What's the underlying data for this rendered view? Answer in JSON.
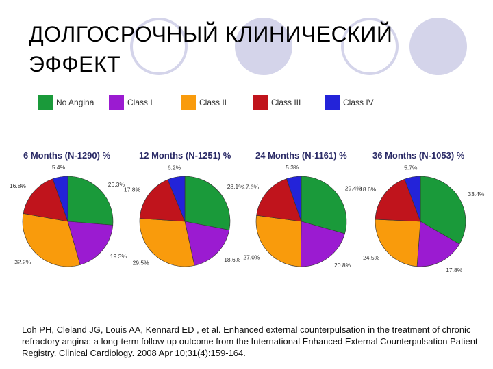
{
  "slide": {
    "title": "ДОЛГОСРОЧНЫЙ КЛИНИЧЕСКИЙ\nЭФФЕКТ",
    "citation": "Loh PH, Cleland JG, Louis AA, Kennard ED , et al. Enhanced external counterpulsation in the treatment of chronic refractory angina: a long-term follow-up outcome from the International Enhanced External Counterpulsation Patient Registry. Clinical Cardiology. 2008 Apr 10;31(4):159-164."
  },
  "legend": [
    {
      "label": "No Angina",
      "color": "#1a9a3a"
    },
    {
      "label": "Class I",
      "color": "#9b1bd1"
    },
    {
      "label": "Class II",
      "color": "#f99b0c"
    },
    {
      "label": "Class III",
      "color": "#c0141c"
    },
    {
      "label": "Class IV",
      "color": "#2323d9"
    }
  ],
  "chart_data": [
    {
      "type": "pie",
      "title": "6 Months (N-1290) %",
      "categories": [
        "No Angina",
        "Class I",
        "Class II",
        "Class III",
        "Class IV"
      ],
      "values": [
        26.3,
        19.3,
        32.2,
        16.8,
        5.4
      ],
      "labels": [
        "26.3%",
        "19.3%",
        "32.2%",
        "16.8%",
        "5.4%"
      ]
    },
    {
      "type": "pie",
      "title": "12 Months (N-1251) %",
      "categories": [
        "No Angina",
        "Class I",
        "Class II",
        "Class III",
        "Class IV"
      ],
      "values": [
        28.1,
        18.6,
        29.5,
        17.8,
        6.2
      ],
      "labels": [
        "28.1%",
        "18.6%",
        "29.5%",
        "17.8%",
        "6.2%"
      ]
    },
    {
      "type": "pie",
      "title": "24 Months (N-1161) %",
      "categories": [
        "No Angina",
        "Class I",
        "Class II",
        "Class III",
        "Class IV"
      ],
      "values": [
        29.4,
        20.8,
        27.0,
        17.6,
        5.3
      ],
      "labels": [
        "29.4%",
        "20.8%",
        "27.0%",
        "17.6%",
        "5.3%"
      ]
    },
    {
      "type": "pie",
      "title": "36 Months (N-1053) %",
      "categories": [
        "No Angina",
        "Class I",
        "Class II",
        "Class III",
        "Class IV"
      ],
      "values": [
        33.4,
        17.8,
        24.5,
        18.6,
        5.7
      ],
      "labels": [
        "33.4%",
        "17.8%",
        "24.5%",
        "18.6%",
        "5.7%"
      ]
    }
  ]
}
